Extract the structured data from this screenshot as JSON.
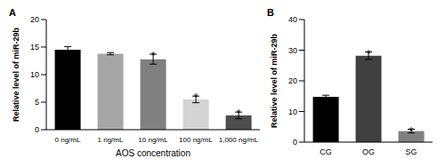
{
  "chart_data": [
    {
      "type": "bar",
      "title": "A",
      "categories": [
        "0 ng/mL",
        "1 ng/mL",
        "10 ng/mL",
        "100 ng/mL",
        "1,000 ng/mL"
      ],
      "values": [
        14.5,
        13.8,
        12.8,
        5.5,
        2.6
      ],
      "errors": [
        0.6,
        0.2,
        0.9,
        0.6,
        0.6
      ],
      "annotations": [
        null,
        null,
        "*",
        "*",
        "*"
      ],
      "colors": [
        "#000000",
        "#a6a6a6",
        "#808080",
        "#d4d4d4",
        "#4d4d4d"
      ],
      "x_label": "AOS concentration",
      "y_label": "Relative level of miR-29b",
      "ylim": [
        0,
        20
      ],
      "yticks": [
        0,
        5,
        10,
        15,
        20
      ]
    },
    {
      "type": "bar",
      "title": "B",
      "categories": [
        "CG",
        "OG",
        "SG"
      ],
      "values": [
        14.8,
        28.2,
        3.6
      ],
      "errors": [
        0.5,
        1.2,
        0.6
      ],
      "annotations": [
        null,
        "*",
        "*"
      ],
      "colors": [
        "#000000",
        "#404040",
        "#808080"
      ],
      "y_label": "Relative level of miR-29b",
      "ylim": [
        0,
        40
      ],
      "yticks": [
        0,
        10,
        20,
        30,
        40
      ]
    }
  ]
}
